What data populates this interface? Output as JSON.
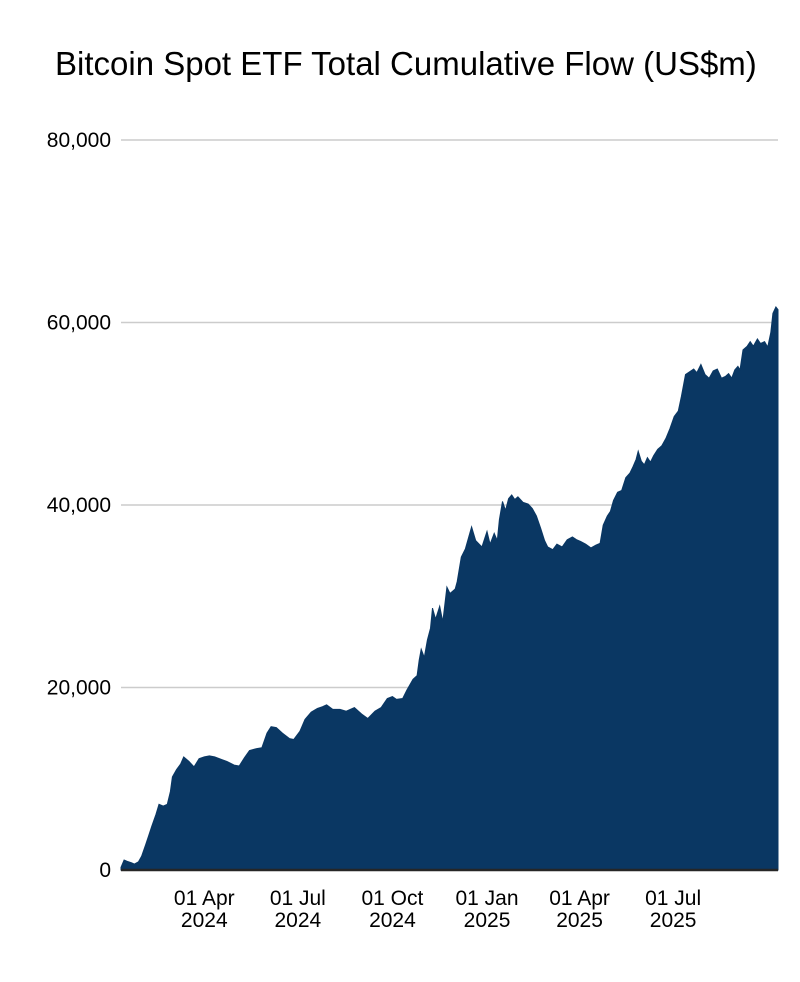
{
  "title": "Bitcoin Spot ETF Total Cumulative Flow (US$m)",
  "colors": {
    "background": "#ffffff",
    "area_fill": "#0a3763",
    "gridline": "#cccccc",
    "zero_axis": "#262626",
    "text": "#000000"
  },
  "chart_data": {
    "type": "area",
    "title": "Bitcoin Spot ETF Total Cumulative Flow (US$m)",
    "xlabel": "",
    "ylabel": "",
    "grid": true,
    "legend": false,
    "ylim": [
      0,
      80000
    ],
    "x_range": [
      "2024-01-11",
      "2025-10-11"
    ],
    "yticks": [
      {
        "value": 0,
        "label": "0"
      },
      {
        "value": 20000,
        "label": "20,000"
      },
      {
        "value": 40000,
        "label": "40,000"
      },
      {
        "value": 60000,
        "label": "60,000"
      },
      {
        "value": 80000,
        "label": "80,000"
      }
    ],
    "xticks": [
      {
        "date": "2024-04-01",
        "line1": "01 Apr",
        "line2": "2024"
      },
      {
        "date": "2024-07-01",
        "line1": "01 Jul",
        "line2": "2024"
      },
      {
        "date": "2024-10-01",
        "line1": "01 Oct",
        "line2": "2024"
      },
      {
        "date": "2025-01-01",
        "line1": "01 Jan",
        "line2": "2025"
      },
      {
        "date": "2025-04-01",
        "line1": "01 Apr",
        "line2": "2025"
      },
      {
        "date": "2025-07-01",
        "line1": "01 Jul",
        "line2": "2025"
      }
    ],
    "series": [
      {
        "name": "total_cumulative_flow_usd_m",
        "points": [
          [
            "2024-01-11",
            300
          ],
          [
            "2024-01-14",
            1100
          ],
          [
            "2024-01-17",
            950
          ],
          [
            "2024-01-21",
            800
          ],
          [
            "2024-01-24",
            650
          ],
          [
            "2024-01-28",
            900
          ],
          [
            "2024-01-31",
            1500
          ],
          [
            "2024-02-04",
            2800
          ],
          [
            "2024-02-07",
            3800
          ],
          [
            "2024-02-10",
            4800
          ],
          [
            "2024-02-14",
            6100
          ],
          [
            "2024-02-17",
            7200
          ],
          [
            "2024-02-21",
            7000
          ],
          [
            "2024-02-25",
            7200
          ],
          [
            "2024-02-28",
            8600
          ],
          [
            "2024-03-01",
            10200
          ],
          [
            "2024-03-05",
            11000
          ],
          [
            "2024-03-09",
            11600
          ],
          [
            "2024-03-12",
            12400
          ],
          [
            "2024-03-17",
            11900
          ],
          [
            "2024-03-22",
            11300
          ],
          [
            "2024-03-27",
            12200
          ],
          [
            "2024-04-01",
            12400
          ],
          [
            "2024-04-06",
            12500
          ],
          [
            "2024-04-11",
            12400
          ],
          [
            "2024-04-18",
            12100
          ],
          [
            "2024-04-23",
            11900
          ],
          [
            "2024-04-30",
            11500
          ],
          [
            "2024-05-05",
            11400
          ],
          [
            "2024-05-10",
            12300
          ],
          [
            "2024-05-15",
            13100
          ],
          [
            "2024-05-22",
            13300
          ],
          [
            "2024-05-27",
            13400
          ],
          [
            "2024-06-01",
            15000
          ],
          [
            "2024-06-05",
            15700
          ],
          [
            "2024-06-10",
            15600
          ],
          [
            "2024-06-16",
            15000
          ],
          [
            "2024-06-23",
            14400
          ],
          [
            "2024-06-27",
            14300
          ],
          [
            "2024-07-03",
            15200
          ],
          [
            "2024-07-08",
            16500
          ],
          [
            "2024-07-14",
            17300
          ],
          [
            "2024-07-20",
            17700
          ],
          [
            "2024-07-25",
            17900
          ],
          [
            "2024-07-29",
            18100
          ],
          [
            "2024-08-04",
            17600
          ],
          [
            "2024-08-11",
            17600
          ],
          [
            "2024-08-17",
            17400
          ],
          [
            "2024-08-25",
            17800
          ],
          [
            "2024-09-01",
            17100
          ],
          [
            "2024-09-07",
            16600
          ],
          [
            "2024-09-14",
            17400
          ],
          [
            "2024-09-20",
            17800
          ],
          [
            "2024-09-26",
            18800
          ],
          [
            "2024-10-01",
            19000
          ],
          [
            "2024-10-05",
            18700
          ],
          [
            "2024-10-11",
            18800
          ],
          [
            "2024-10-15",
            19700
          ],
          [
            "2024-10-21",
            20900
          ],
          [
            "2024-10-25",
            21300
          ],
          [
            "2024-10-27",
            23000
          ],
          [
            "2024-10-29",
            24200
          ],
          [
            "2024-11-01",
            23300
          ],
          [
            "2024-11-04",
            25200
          ],
          [
            "2024-11-07",
            26500
          ],
          [
            "2024-11-09",
            28700
          ],
          [
            "2024-11-12",
            27500
          ],
          [
            "2024-11-16",
            28900
          ],
          [
            "2024-11-19",
            27200
          ],
          [
            "2024-11-23",
            31000
          ],
          [
            "2024-11-26",
            30300
          ],
          [
            "2024-12-01",
            30800
          ],
          [
            "2024-12-03",
            31600
          ],
          [
            "2024-12-07",
            34300
          ],
          [
            "2024-12-11",
            35200
          ],
          [
            "2024-12-17",
            37600
          ],
          [
            "2024-12-21",
            36100
          ],
          [
            "2024-12-27",
            35400
          ],
          [
            "2025-01-01",
            37100
          ],
          [
            "2025-01-04",
            35700
          ],
          [
            "2025-01-08",
            36900
          ],
          [
            "2025-01-11",
            36100
          ],
          [
            "2025-01-13",
            38400
          ],
          [
            "2025-01-16",
            40400
          ],
          [
            "2025-01-19",
            39400
          ],
          [
            "2025-01-22",
            40700
          ],
          [
            "2025-01-25",
            41100
          ],
          [
            "2025-01-28",
            40600
          ],
          [
            "2025-01-31",
            40900
          ],
          [
            "2025-02-05",
            40300
          ],
          [
            "2025-02-10",
            40100
          ],
          [
            "2025-02-14",
            39600
          ],
          [
            "2025-02-18",
            38800
          ],
          [
            "2025-02-22",
            37500
          ],
          [
            "2025-02-26",
            36100
          ],
          [
            "2025-03-01",
            35400
          ],
          [
            "2025-03-06",
            35100
          ],
          [
            "2025-03-10",
            35700
          ],
          [
            "2025-03-15",
            35400
          ],
          [
            "2025-03-20",
            36200
          ],
          [
            "2025-03-25",
            36500
          ],
          [
            "2025-03-29",
            36200
          ],
          [
            "2025-04-02",
            36000
          ],
          [
            "2025-04-07",
            35700
          ],
          [
            "2025-04-12",
            35300
          ],
          [
            "2025-04-17",
            35600
          ],
          [
            "2025-04-21",
            35800
          ],
          [
            "2025-04-24",
            37800
          ],
          [
            "2025-04-28",
            38800
          ],
          [
            "2025-05-01",
            39300
          ],
          [
            "2025-05-04",
            40500
          ],
          [
            "2025-05-08",
            41400
          ],
          [
            "2025-05-12",
            41600
          ],
          [
            "2025-05-16",
            43000
          ],
          [
            "2025-05-20",
            43500
          ],
          [
            "2025-05-23",
            44200
          ],
          [
            "2025-05-26",
            45000
          ],
          [
            "2025-05-28",
            45900
          ],
          [
            "2025-05-31",
            44800
          ],
          [
            "2025-06-03",
            44400
          ],
          [
            "2025-06-06",
            45200
          ],
          [
            "2025-06-09",
            44700
          ],
          [
            "2025-06-12",
            45400
          ],
          [
            "2025-06-16",
            46100
          ],
          [
            "2025-06-20",
            46500
          ],
          [
            "2025-06-24",
            47300
          ],
          [
            "2025-06-28",
            48400
          ],
          [
            "2025-07-02",
            49700
          ],
          [
            "2025-07-06",
            50300
          ],
          [
            "2025-07-09",
            51900
          ],
          [
            "2025-07-13",
            54300
          ],
          [
            "2025-07-17",
            54600
          ],
          [
            "2025-07-21",
            54900
          ],
          [
            "2025-07-24",
            54500
          ],
          [
            "2025-07-28",
            55400
          ],
          [
            "2025-08-01",
            54300
          ],
          [
            "2025-08-05",
            53900
          ],
          [
            "2025-08-09",
            54700
          ],
          [
            "2025-08-13",
            54900
          ],
          [
            "2025-08-17",
            53900
          ],
          [
            "2025-08-21",
            54100
          ],
          [
            "2025-08-24",
            54400
          ],
          [
            "2025-08-27",
            53900
          ],
          [
            "2025-08-30",
            54800
          ],
          [
            "2025-09-02",
            55200
          ],
          [
            "2025-09-04",
            54800
          ],
          [
            "2025-09-07",
            57000
          ],
          [
            "2025-09-11",
            57400
          ],
          [
            "2025-09-14",
            57900
          ],
          [
            "2025-09-17",
            57400
          ],
          [
            "2025-09-21",
            58200
          ],
          [
            "2025-09-24",
            57700
          ],
          [
            "2025-09-28",
            57900
          ],
          [
            "2025-10-01",
            57300
          ],
          [
            "2025-10-04",
            58900
          ],
          [
            "2025-10-06",
            61000
          ],
          [
            "2025-10-09",
            61700
          ],
          [
            "2025-10-11",
            61400
          ]
        ]
      }
    ]
  }
}
